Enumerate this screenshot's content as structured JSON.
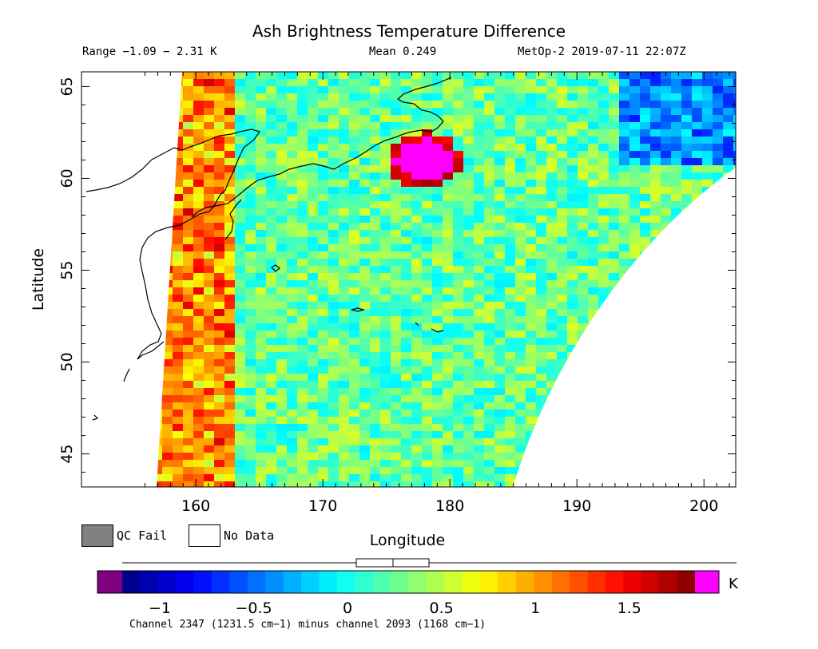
{
  "chart_data": {
    "type": "heatmap",
    "title": "Ash Brightness Temperature Difference",
    "subtitle": {
      "range": "Range −1.09 − 2.31 K",
      "mean": "Mean 0.249",
      "satellite": "MetOp-2 2019-07-11 22:07Z"
    },
    "xlabel": "Longitude",
    "ylabel": "Latitude",
    "xlim": [
      151,
      202.5
    ],
    "ylim": [
      43.2,
      65.8
    ],
    "x_ticks": [
      "160",
      "170",
      "180",
      "190",
      "200"
    ],
    "x_tick_values": [
      160,
      170,
      180,
      190,
      200
    ],
    "y_ticks": [
      "45",
      "50",
      "55",
      "60",
      "65"
    ],
    "y_tick_values": [
      45,
      50,
      55,
      60,
      65
    ],
    "hotspot": {
      "lon": 177.5,
      "lat": 61.2,
      "value": 2.31
    },
    "colorbar": {
      "min": -1.2,
      "max": 1.85,
      "unit": "K",
      "ticks": [
        "−1",
        "−0.5",
        "0",
        "0.5",
        "1",
        "1.5"
      ],
      "tick_values": [
        -1,
        -0.5,
        0,
        0.5,
        1,
        1.5
      ],
      "below_color": "#800080",
      "above_color": "#ff00ff",
      "caption": "Channel 2347 (1231.5 cm−1) minus channel 2093 (1168 cm−1)"
    }
  },
  "legend": {
    "qc_fail_label": "QC Fail",
    "qc_fail_color": "#808080",
    "no_data_label": "No Data",
    "no_data_color": "#ffffff"
  }
}
